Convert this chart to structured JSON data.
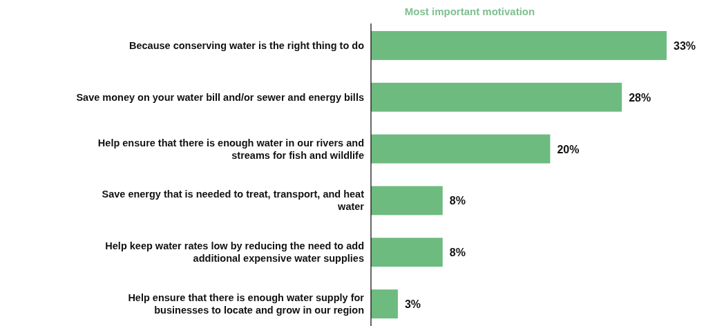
{
  "chart_data": {
    "type": "bar",
    "orientation": "horizontal",
    "title": "Most important motivation",
    "categories": [
      "Because conserving water is the right thing to do",
      "Save money on your water bill and/or sewer and energy bills",
      "Help ensure that there is enough water in our rivers and streams for fish and wildlife",
      "Save energy that is needed to treat, transport, and heat water",
      "Help keep water rates low by reducing the need to add additional expensive water supplies",
      "Help ensure that there is enough water supply for businesses to locate and grow in our region"
    ],
    "values": [
      33,
      28,
      20,
      8,
      8,
      3
    ],
    "value_labels": [
      "33%",
      "28%",
      "20%",
      "8%",
      "8%",
      "3%"
    ],
    "color": "#6dbb7f"
  }
}
